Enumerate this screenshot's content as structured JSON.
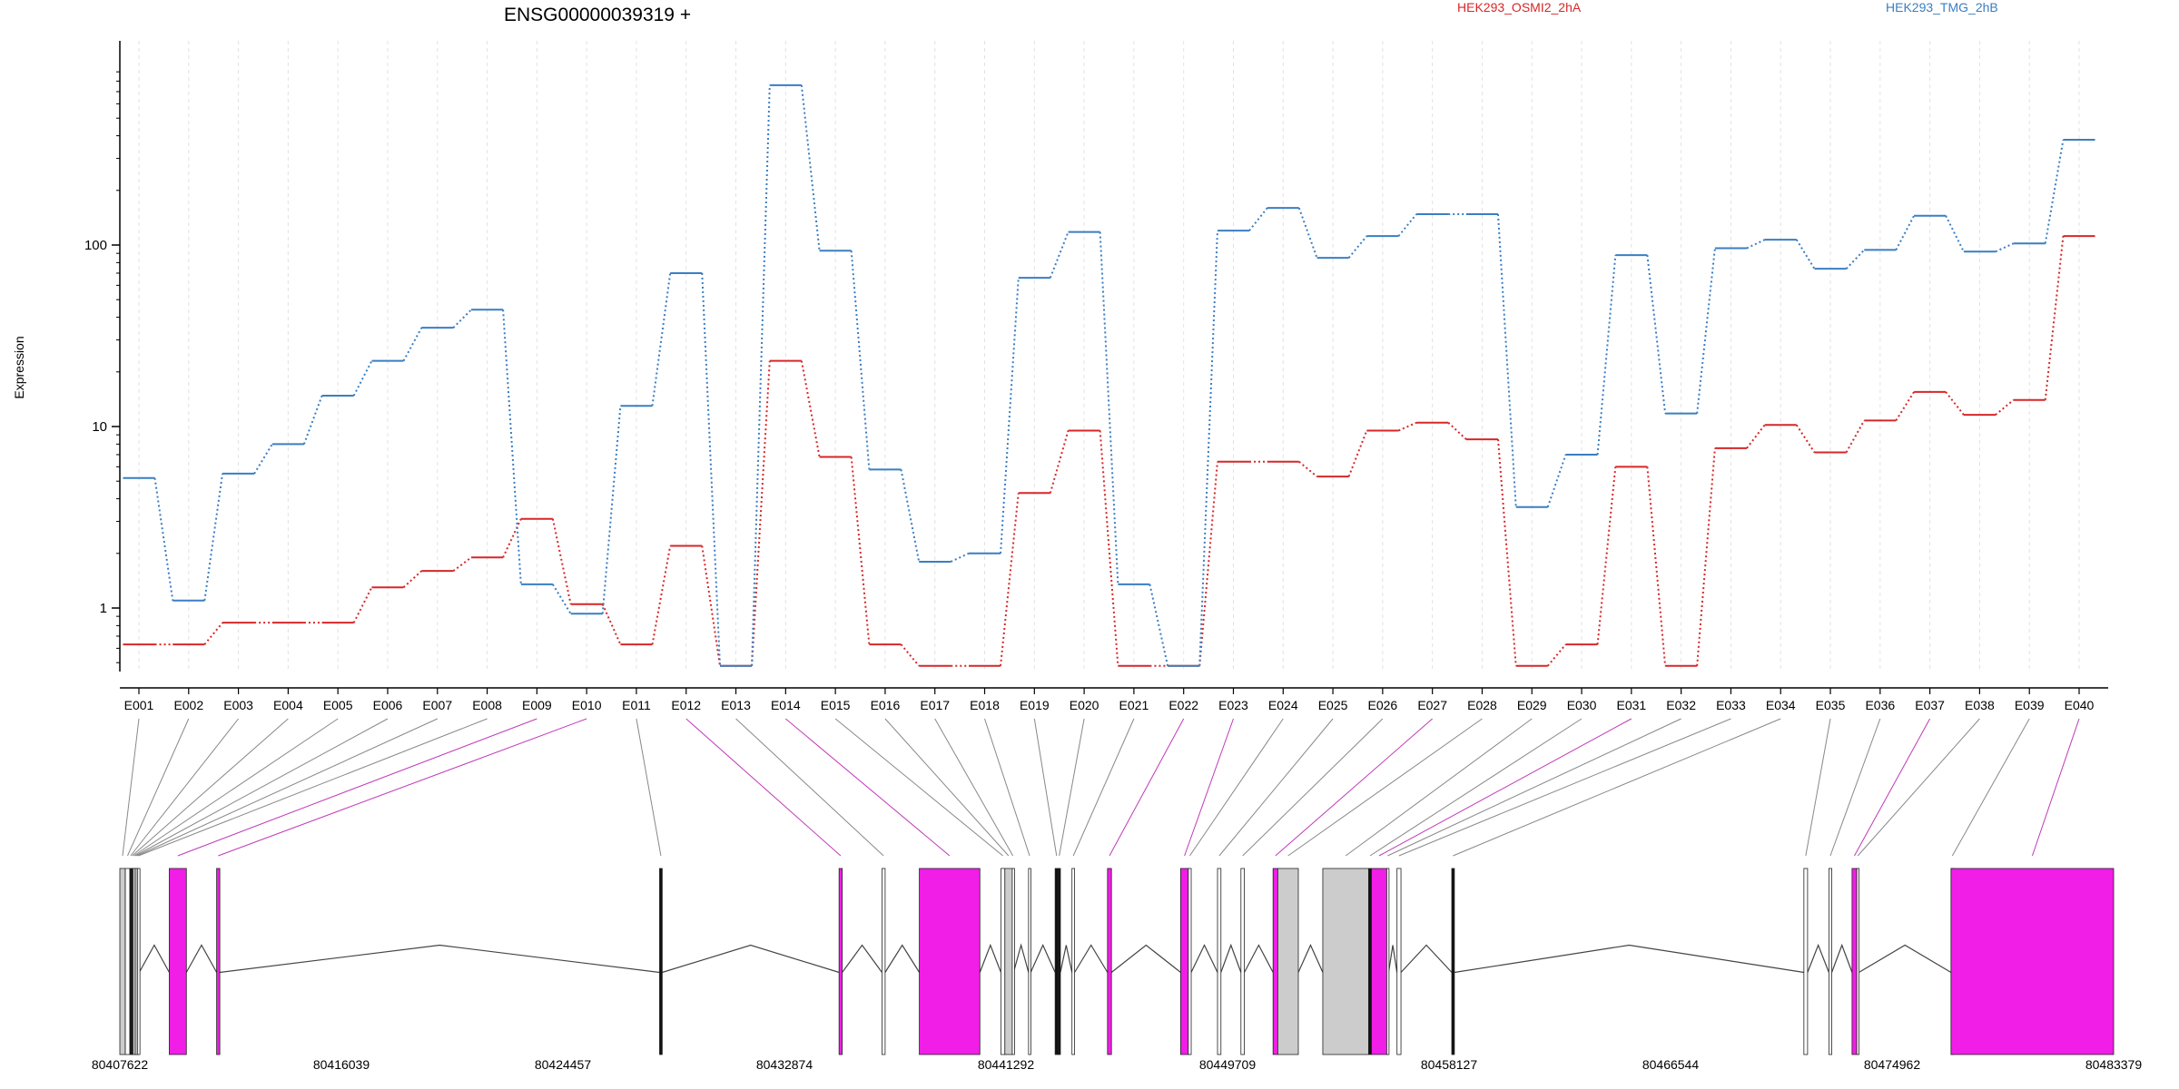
{
  "chart_data": {
    "type": "line",
    "title": "ENSG00000039319 +",
    "ylabel": "Expression",
    "y_scale": "log10",
    "ylim": [
      0.5,
      1000
    ],
    "y_ticks": [
      1,
      10,
      100
    ],
    "y_tick_labels": [
      "1",
      "10",
      "100"
    ],
    "grid": "vertical dashed, light gray",
    "legend_placement": "top",
    "categories": [
      "E001",
      "E002",
      "E003",
      "E004",
      "E005",
      "E006",
      "E007",
      "E008",
      "E009",
      "E010",
      "E011",
      "E012",
      "E013",
      "E014",
      "E015",
      "E016",
      "E017",
      "E018",
      "E019",
      "E020",
      "E021",
      "E022",
      "E023",
      "E024",
      "E025",
      "E026",
      "E027",
      "E028",
      "E029",
      "E030",
      "E031",
      "E032",
      "E033",
      "E034",
      "E035",
      "E036",
      "E037",
      "E038",
      "E039",
      "E040"
    ],
    "series": [
      {
        "name": "HEK293_OSMI2_2hA",
        "color": "#d62728",
        "values": [
          0.63,
          0.63,
          0.83,
          0.83,
          0.83,
          1.3,
          1.6,
          1.9,
          3.1,
          1.05,
          0.63,
          2.2,
          0.48,
          23,
          6.8,
          0.63,
          0.48,
          0.48,
          4.3,
          9.5,
          0.48,
          0.48,
          6.4,
          6.4,
          5.3,
          9.5,
          10.5,
          8.5,
          0.48,
          0.63,
          6.0,
          0.48,
          7.6,
          10.2,
          7.2,
          10.8,
          15.5,
          11.6,
          14.0,
          112
        ]
      },
      {
        "name": "HEK293_TMG_2hB",
        "color": "#3a7ec2",
        "values": [
          5.2,
          1.1,
          5.5,
          8.0,
          14.8,
          23,
          35,
          44,
          1.35,
          0.93,
          13,
          70,
          0.48,
          760,
          93,
          5.8,
          1.8,
          2.0,
          66,
          118,
          1.35,
          0.48,
          120,
          160,
          85,
          112,
          148,
          148,
          3.6,
          7.0,
          88,
          11.8,
          96,
          107,
          74,
          94,
          145,
          92,
          102,
          380
        ]
      }
    ],
    "genomic_axis": {
      "tick_labels": [
        "80407622",
        "80416039",
        "80424457",
        "80432874",
        "80441292",
        "80449709",
        "80458127",
        "80466544",
        "80474962",
        "80483379"
      ],
      "range": [
        80407622,
        80483379
      ]
    },
    "gene_model": {
      "exon_fill": "#ffffff",
      "highlight_fill": "#f01ee6",
      "shaded_fill": "#cccccc",
      "exons": [
        {
          "id": "E001",
          "start": 80407622,
          "end": 80407830,
          "style": "shaded"
        },
        {
          "id": "E002",
          "start": 80407830,
          "end": 80408000,
          "style": "plain"
        },
        {
          "id": "E003",
          "start": 80408000,
          "end": 80408060,
          "style": "dark"
        },
        {
          "id": "E004",
          "start": 80408060,
          "end": 80408120,
          "style": "dark"
        },
        {
          "id": "E005",
          "start": 80408120,
          "end": 80408180,
          "style": "plain"
        },
        {
          "id": "E006",
          "start": 80408180,
          "end": 80408240,
          "style": "plain"
        },
        {
          "id": "E007",
          "start": 80408240,
          "end": 80408300,
          "style": "plain"
        },
        {
          "id": "E008",
          "start": 80408300,
          "end": 80408360,
          "style": "plain"
        },
        {
          "id": "E009",
          "start": 80409500,
          "end": 80410150,
          "style": "highlight"
        },
        {
          "id": "E010",
          "start": 80411300,
          "end": 80411420,
          "style": "highlight"
        },
        {
          "id": "E011",
          "start": 80428130,
          "end": 80428230,
          "style": "dark"
        },
        {
          "id": "E012",
          "start": 80434950,
          "end": 80435070,
          "style": "highlight"
        },
        {
          "id": "E013",
          "start": 80436580,
          "end": 80436700,
          "style": "plain"
        },
        {
          "id": "E014",
          "start": 80438000,
          "end": 80440300,
          "style": "highlight"
        },
        {
          "id": "E015",
          "start": 80441100,
          "end": 80441250,
          "style": "plain"
        },
        {
          "id": "E016",
          "start": 80441250,
          "end": 80441530,
          "style": "shaded"
        },
        {
          "id": "E017",
          "start": 80441530,
          "end": 80441580,
          "style": "plain"
        },
        {
          "id": "E018",
          "start": 80442150,
          "end": 80442230,
          "style": "plain"
        },
        {
          "id": "E019",
          "start": 80443160,
          "end": 80443270,
          "style": "dark"
        },
        {
          "id": "E020",
          "start": 80443270,
          "end": 80443360,
          "style": "dark"
        },
        {
          "id": "E021",
          "start": 80443800,
          "end": 80443900,
          "style": "plain"
        },
        {
          "id": "E022",
          "start": 80445150,
          "end": 80445300,
          "style": "highlight"
        },
        {
          "id": "E023",
          "start": 80447930,
          "end": 80448220,
          "style": "highlight"
        },
        {
          "id": "E024",
          "start": 80448220,
          "end": 80448330,
          "style": "plain"
        },
        {
          "id": "E025",
          "start": 80449330,
          "end": 80449460,
          "style": "plain"
        },
        {
          "id": "E026",
          "start": 80450220,
          "end": 80450350,
          "style": "plain"
        },
        {
          "id": "E027",
          "start": 80451440,
          "end": 80451620,
          "style": "highlight"
        },
        {
          "id": "E028",
          "start": 80451620,
          "end": "80452400",
          "style": "shaded"
        },
        {
          "id": "E029",
          "start": 80453330,
          "end": 80455070,
          "style": "shaded"
        },
        {
          "id": "E030",
          "start": 80455070,
          "end": 80455180,
          "style": "dark"
        },
        {
          "id": "E031",
          "start": 80455180,
          "end": 80455760,
          "style": "highlight"
        },
        {
          "id": "E032",
          "start": 80455760,
          "end": 80455830,
          "style": "plain"
        },
        {
          "id": "E033",
          "start": "80456150",
          "end": 80456300,
          "style": "plain"
        },
        {
          "id": "E034",
          "start": 80458230,
          "end": 80458330,
          "style": "dark"
        },
        {
          "id": "E035",
          "start": 80471610,
          "end": 80471750,
          "style": "plain"
        },
        {
          "id": "E036",
          "start": 80472560,
          "end": 80472670,
          "style": "plain"
        },
        {
          "id": "E037",
          "start": 80473440,
          "end": 80473620,
          "style": "highlight"
        },
        {
          "id": "E038",
          "start": 80473620,
          "end": 80473700,
          "style": "plain"
        },
        {
          "id": "E039",
          "start": "80477200",
          "end": "80477300",
          "style": "plain"
        },
        {
          "id": "E040",
          "start": 80477200,
          "end": 80483379,
          "style": "highlight"
        }
      ]
    }
  }
}
